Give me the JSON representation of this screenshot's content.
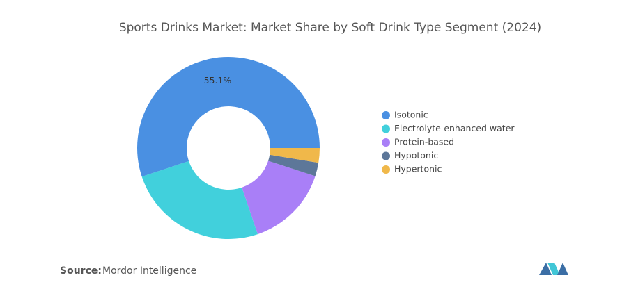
{
  "chart_data": {
    "type": "donut",
    "title": "Sports Drinks Market: Market Share by Soft Drink Type Segment (2024)",
    "series": [
      {
        "name": "Isotonic",
        "color": "#4a90e2"
      },
      {
        "name": "Electrolyte-enhanced water",
        "color": "#41d0dc"
      },
      {
        "name": "Protein-based",
        "color": "#a97ff7"
      },
      {
        "name": "Hypotonic",
        "color": "#5d7799"
      },
      {
        "name": "Hypertonic",
        "color": "#f0b84a"
      }
    ],
    "values": [
      55.1,
      25.1,
      14.8,
      2.4,
      2.6
    ],
    "value_labels": [
      "55.1%",
      null,
      null,
      null,
      null
    ],
    "source_label": "Source:",
    "source": "Mordor Intelligence"
  }
}
